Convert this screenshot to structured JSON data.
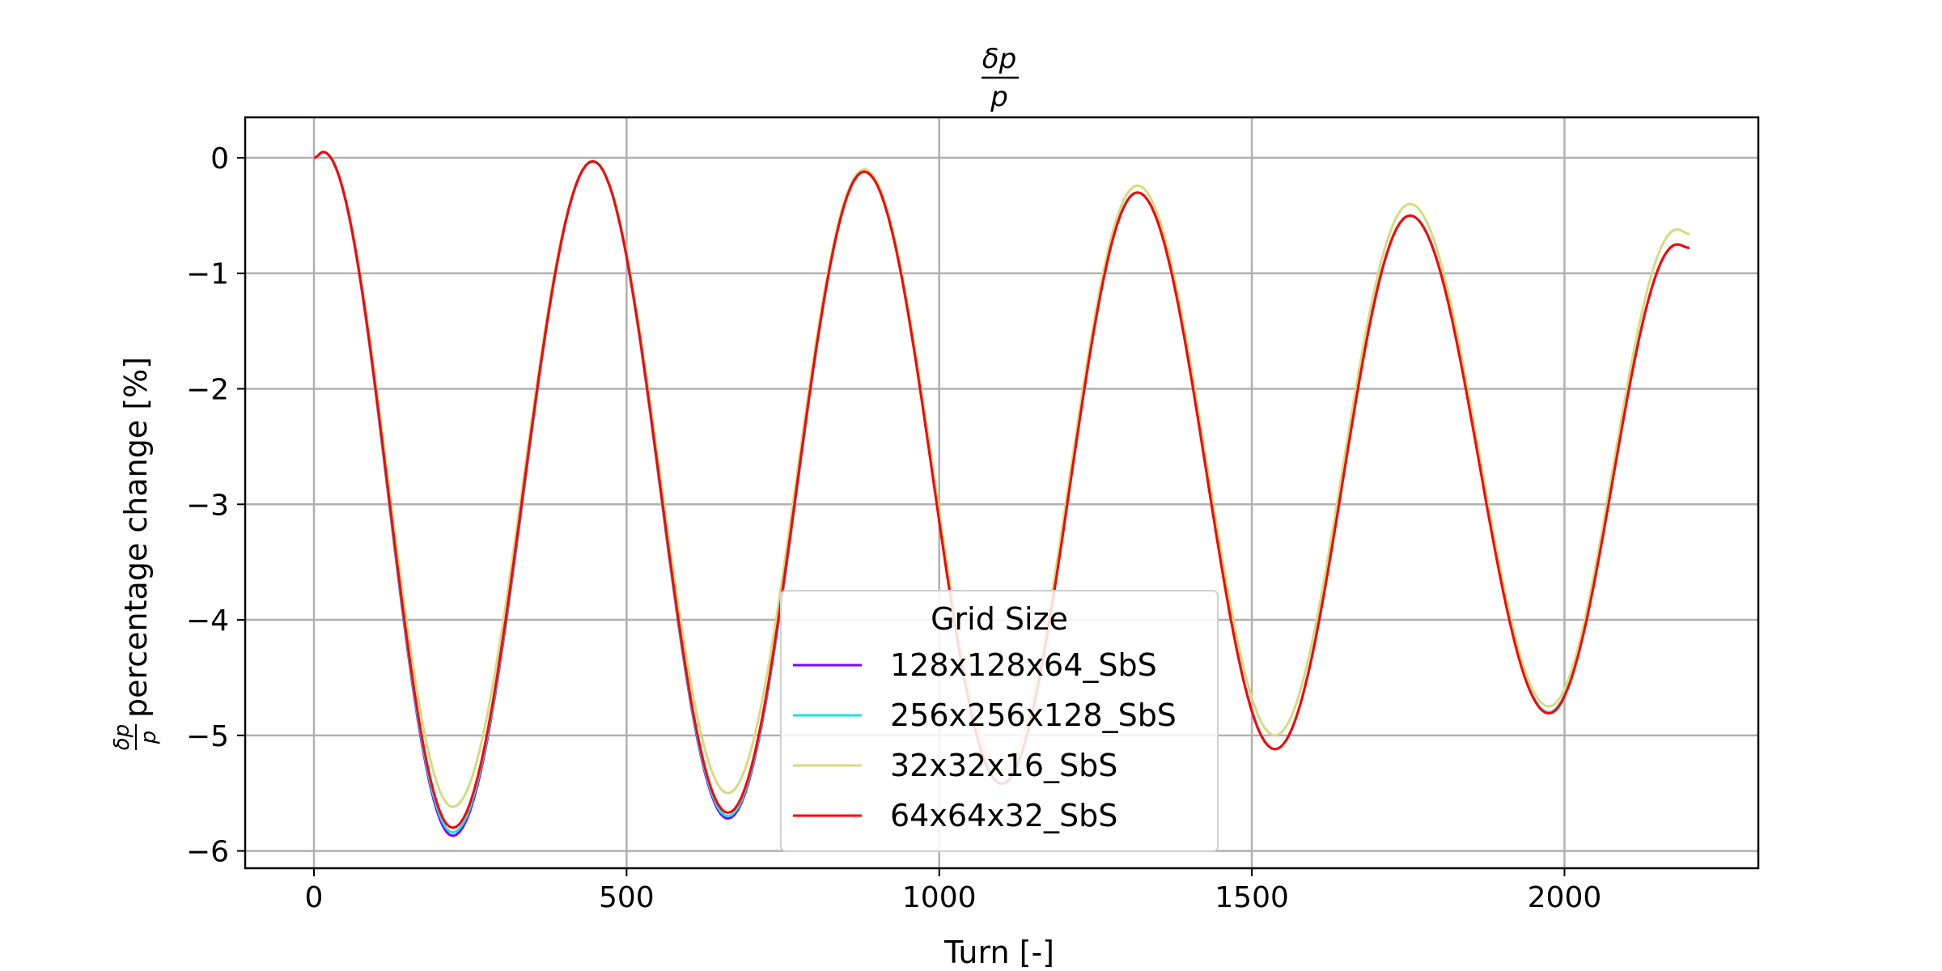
{
  "chart_data": {
    "type": "line",
    "title": {
      "numerator": "δp",
      "denominator": "p"
    },
    "xlabel": "Turn [-]",
    "ylabel": {
      "fraction_numerator": "δp",
      "fraction_denominator": "p",
      "text": "percentage change [%]"
    },
    "xlim": [
      -110,
      2310
    ],
    "ylim": [
      -6.15,
      0.35
    ],
    "xticks": [
      0,
      500,
      1000,
      1500,
      2000
    ],
    "yticks": [
      0,
      -1,
      -2,
      -3,
      -4,
      -5,
      -6
    ],
    "grid": true,
    "legend": {
      "title": "Grid Size",
      "placement": "lower-center"
    },
    "series": [
      {
        "name": "128x128x64_SbS",
        "color": "#7f00ff",
        "x": [
          0,
          15,
          222,
          446,
          662,
          880,
          1100,
          1317,
          1537,
          1753,
          1975,
          2180,
          2200
        ],
        "y": [
          0,
          0.05,
          -5.87,
          -0.03,
          -5.72,
          -0.12,
          -5.42,
          -0.3,
          -5.12,
          -0.5,
          -4.8,
          -0.75,
          -0.78
        ]
      },
      {
        "name": "256x256x128_SbS",
        "color": "#1ce2e0",
        "x": [
          0,
          15,
          222,
          446,
          662,
          880,
          1100,
          1317,
          1537,
          1753,
          1975,
          2180,
          2200
        ],
        "y": [
          0,
          0.05,
          -5.84,
          -0.03,
          -5.7,
          -0.12,
          -5.42,
          -0.3,
          -5.12,
          -0.5,
          -4.8,
          -0.75,
          -0.78
        ]
      },
      {
        "name": "32x32x16_SbS",
        "color": "#d4dc7f",
        "x": [
          0,
          15,
          222,
          446,
          662,
          880,
          1100,
          1317,
          1537,
          1753,
          1975,
          2180,
          2200
        ],
        "y": [
          0,
          0.05,
          -5.62,
          -0.03,
          -5.5,
          -0.1,
          -5.3,
          -0.24,
          -5.0,
          -0.4,
          -4.75,
          -0.62,
          -0.66
        ]
      },
      {
        "name": "64x64x32_SbS",
        "color": "#ff0000",
        "x": [
          0,
          15,
          222,
          446,
          662,
          880,
          1100,
          1317,
          1537,
          1753,
          1975,
          2180,
          2200
        ],
        "y": [
          0,
          0.05,
          -5.8,
          -0.03,
          -5.67,
          -0.12,
          -5.42,
          -0.3,
          -5.12,
          -0.5,
          -4.81,
          -0.75,
          -0.78
        ]
      }
    ]
  }
}
